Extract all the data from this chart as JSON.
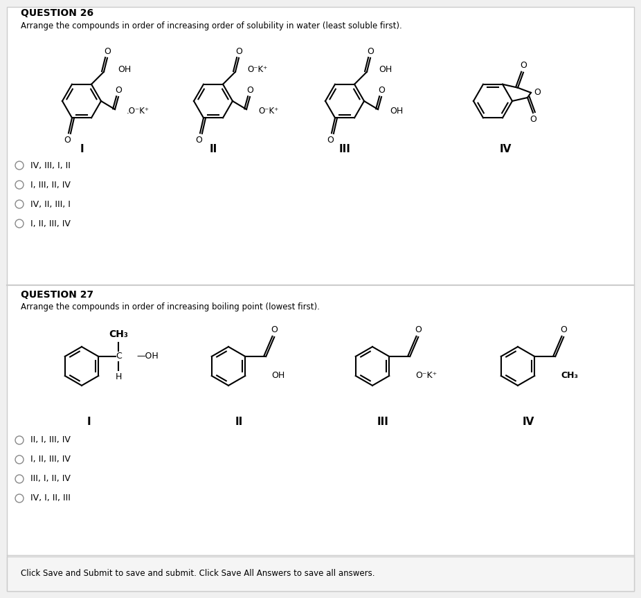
{
  "bg_color": "#ffffff",
  "outer_bg": "#f0f0f0",
  "q26_title": "QUESTION 26",
  "q26_instruction": "Arrange the compounds in order of increasing order of solubility in water (least soluble first).",
  "q27_title": "QUESTION 27",
  "q27_instruction": "Arrange the compounds in order of increasing boiling point (lowest first).",
  "q26_options": [
    "IV, III, I, II",
    "I, III, II, IV",
    "IV, II, III, I",
    "I, II, III, IV"
  ],
  "q27_options": [
    "II, I, III, IV",
    "I, II, III, IV",
    "III, I, II, IV",
    "IV, I, II, III"
  ],
  "footer": "Click Save and Submit to save and submit. Click Save All Answers to save all answers.",
  "separator_color": "#cccccc",
  "footer_bg": "#f0f0f0"
}
